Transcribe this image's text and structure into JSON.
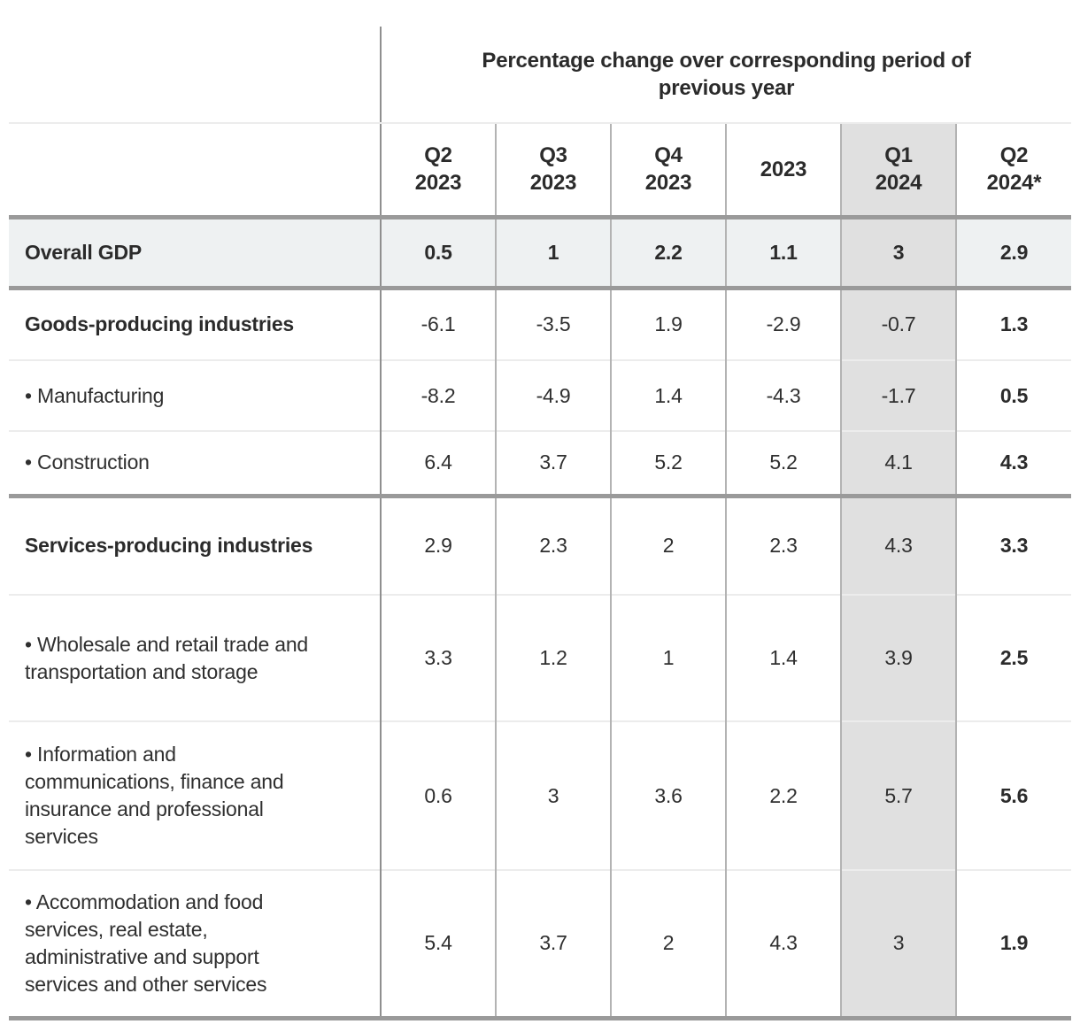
{
  "table": {
    "spanning_header": "Percentage change over corresponding period of previous year",
    "columns": [
      {
        "line1": "Q2",
        "line2": "2023",
        "highlight": false,
        "bold_values": false
      },
      {
        "line1": "Q3",
        "line2": "2023",
        "highlight": false,
        "bold_values": false
      },
      {
        "line1": "Q4",
        "line2": "2023",
        "highlight": false,
        "bold_values": false
      },
      {
        "line1": "2023",
        "line2": "",
        "highlight": false,
        "bold_values": false
      },
      {
        "line1": "Q1",
        "line2": "2024",
        "highlight": true,
        "bold_values": false
      },
      {
        "line1": "Q2",
        "line2": "2024*",
        "highlight": false,
        "bold_values": true
      }
    ],
    "rows": [
      {
        "label": "Overall GDP",
        "bold": true,
        "emphasis_row": true,
        "divider": "thick",
        "values": [
          "0.5",
          "1",
          "2.2",
          "1.1",
          "3",
          "2.9"
        ]
      },
      {
        "label": "Goods-producing industries",
        "bold": true,
        "emphasis_row": false,
        "divider": "thick",
        "values": [
          "-6.1",
          "-3.5",
          "1.9",
          "-2.9",
          "-0.7",
          "1.3"
        ]
      },
      {
        "label": "• Manufacturing",
        "bold": false,
        "emphasis_row": false,
        "divider": "thin",
        "values": [
          "-8.2",
          "-4.9",
          "1.4",
          "-4.3",
          "-1.7",
          "0.5"
        ]
      },
      {
        "label": "• Construction",
        "bold": false,
        "emphasis_row": false,
        "divider": "thin",
        "values": [
          "6.4",
          "3.7",
          "5.2",
          "5.2",
          "4.1",
          "4.3"
        ]
      },
      {
        "label": "Services-producing industries",
        "bold": true,
        "emphasis_row": false,
        "divider": "thick",
        "values": [
          "2.9",
          "2.3",
          "2",
          "2.3",
          "4.3",
          "3.3"
        ]
      },
      {
        "label": "• Wholesale and retail trade and transportation and storage",
        "bold": false,
        "emphasis_row": false,
        "divider": "thin",
        "values": [
          "3.3",
          "1.2",
          "1",
          "1.4",
          "3.9",
          "2.5"
        ]
      },
      {
        "label": "• Information and communications, finance and insurance and professional services",
        "bold": false,
        "emphasis_row": false,
        "divider": "thin",
        "values": [
          "0.6",
          "3",
          "3.6",
          "2.2",
          "5.7",
          "5.6"
        ]
      },
      {
        "label": "• Accommodation and food services, real estate, administrative and support services and other services",
        "bold": false,
        "emphasis_row": false,
        "divider": "thin",
        "values": [
          "5.4",
          "3.7",
          "2",
          "4.3",
          "3",
          "1.9"
        ]
      }
    ]
  },
  "colors": {
    "text": "#2f2f2f",
    "bold_text": "#2b2b2b",
    "thick_border": "#9a9a9a",
    "thin_border": "#ececec",
    "column_border": "#b3b3b3",
    "main_column_border": "#8f8f8f",
    "highlight_column_bg": "#e0e0e0",
    "overall_row_bg": "#eef1f2"
  },
  "chart_data": {
    "type": "table",
    "title": "Percentage change over corresponding period of previous year",
    "columns": [
      "Q2 2023",
      "Q3 2023",
      "Q4 2023",
      "2023",
      "Q1 2024",
      "Q2 2024*"
    ],
    "highlighted_column": "Q1 2024",
    "rows": [
      {
        "label": "Overall GDP",
        "values": [
          0.5,
          1,
          2.2,
          1.1,
          3,
          2.9
        ]
      },
      {
        "label": "Goods-producing industries",
        "values": [
          -6.1,
          -3.5,
          1.9,
          -2.9,
          -0.7,
          1.3
        ]
      },
      {
        "label": "Manufacturing",
        "values": [
          -8.2,
          -4.9,
          1.4,
          -4.3,
          -1.7,
          0.5
        ]
      },
      {
        "label": "Construction",
        "values": [
          6.4,
          3.7,
          5.2,
          5.2,
          4.1,
          4.3
        ]
      },
      {
        "label": "Services-producing industries",
        "values": [
          2.9,
          2.3,
          2,
          2.3,
          4.3,
          3.3
        ]
      },
      {
        "label": "Wholesale and retail trade and transportation and storage",
        "values": [
          3.3,
          1.2,
          1,
          1.4,
          3.9,
          2.5
        ]
      },
      {
        "label": "Information and communications, finance and insurance and professional services",
        "values": [
          0.6,
          3,
          3.6,
          2.2,
          5.7,
          5.6
        ]
      },
      {
        "label": "Accommodation and food services, real estate, administrative and support services and other services",
        "values": [
          5.4,
          3.7,
          2,
          4.3,
          3,
          1.9
        ]
      }
    ]
  }
}
